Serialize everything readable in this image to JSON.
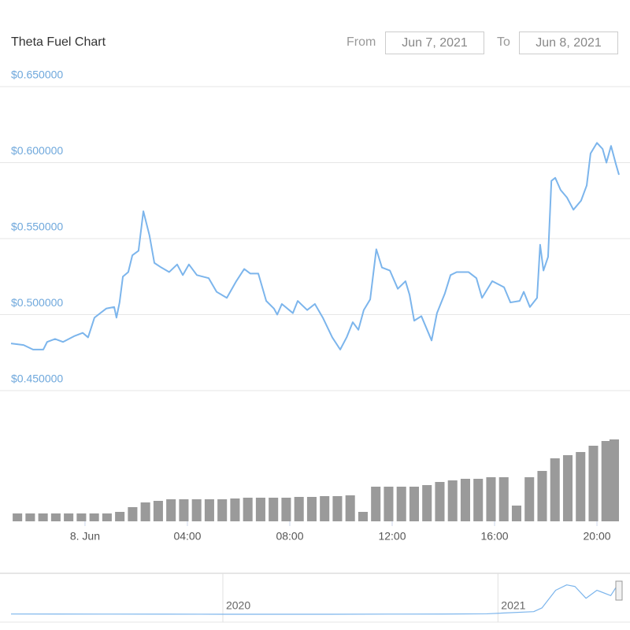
{
  "header": {
    "title": "Theta Fuel Chart",
    "from_label": "From",
    "from_date": "Jun 7, 2021",
    "to_label": "To",
    "to_date": "Jun 8, 2021"
  },
  "chart_data": [
    {
      "type": "line",
      "color": "#7cb5ec",
      "grid": true,
      "xlim": [
        -2.89,
        20.86
      ],
      "ylim": [
        0.45,
        0.65
      ],
      "yticks": [
        {
          "value": 0.45,
          "label": "$0.450000"
        },
        {
          "value": 0.5,
          "label": "$0.500000"
        },
        {
          "value": 0.55,
          "label": "$0.550000"
        },
        {
          "value": 0.6,
          "label": "$0.600000"
        },
        {
          "value": 0.65,
          "label": "$0.650000"
        }
      ],
      "xticks": [
        {
          "value": 0,
          "label": "8. Jun"
        },
        {
          "value": 4,
          "label": "04:00"
        },
        {
          "value": 8,
          "label": "08:00"
        },
        {
          "value": 12,
          "label": "12:00"
        },
        {
          "value": 16,
          "label": "16:00"
        },
        {
          "value": 20,
          "label": "20:00"
        }
      ],
      "x": [
        -2.89,
        -2.4,
        -2.03,
        -1.63,
        -1.48,
        -1.17,
        -0.86,
        -0.4,
        -0.09,
        0.12,
        0.37,
        0.83,
        1.14,
        1.23,
        1.35,
        1.48,
        1.69,
        1.85,
        2.09,
        2.28,
        2.52,
        2.71,
        2.98,
        3.29,
        3.6,
        3.82,
        4.06,
        4.37,
        4.83,
        5.14,
        5.54,
        5.91,
        6.22,
        6.46,
        6.77,
        7.08,
        7.38,
        7.51,
        7.69,
        8.12,
        8.31,
        8.68,
        8.98,
        9.29,
        9.66,
        9.97,
        10.22,
        10.46,
        10.68,
        10.89,
        11.14,
        11.38,
        11.6,
        11.91,
        12.22,
        12.52,
        12.68,
        12.86,
        13.14,
        13.54,
        13.75,
        14.06,
        14.28,
        14.52,
        14.98,
        15.29,
        15.51,
        15.91,
        16.37,
        16.62,
        16.98,
        17.14,
        17.38,
        17.66,
        17.78,
        17.91,
        18.09,
        18.22,
        18.37,
        18.58,
        18.83,
        19.08,
        19.38,
        19.6,
        19.75,
        20,
        20.22,
        20.37,
        20.55,
        20.74,
        20.86
      ],
      "values": [
        0.481,
        0.48,
        0.477,
        0.477,
        0.482,
        0.484,
        0.482,
        0.486,
        0.488,
        0.485,
        0.498,
        0.504,
        0.505,
        0.498,
        0.508,
        0.525,
        0.528,
        0.539,
        0.542,
        0.568,
        0.552,
        0.534,
        0.531,
        0.528,
        0.533,
        0.526,
        0.533,
        0.526,
        0.524,
        0.515,
        0.511,
        0.522,
        0.53,
        0.527,
        0.527,
        0.509,
        0.504,
        0.5,
        0.507,
        0.501,
        0.509,
        0.503,
        0.507,
        0.498,
        0.485,
        0.477,
        0.485,
        0.495,
        0.49,
        0.503,
        0.51,
        0.543,
        0.531,
        0.529,
        0.517,
        0.522,
        0.513,
        0.496,
        0.499,
        0.483,
        0.501,
        0.514,
        0.526,
        0.528,
        0.528,
        0.524,
        0.511,
        0.522,
        0.518,
        0.508,
        0.509,
        0.515,
        0.505,
        0.511,
        0.546,
        0.529,
        0.538,
        0.588,
        0.59,
        0.582,
        0.577,
        0.569,
        0.575,
        0.585,
        0.606,
        0.613,
        0.609,
        0.6,
        0.611,
        0.599,
        0.592
      ]
    },
    {
      "type": "bar",
      "color": "#9a9a9a",
      "xlim": [
        -2.89,
        20.86
      ],
      "x": [
        -2.64,
        -2.14,
        -1.64,
        -1.14,
        -0.64,
        -0.14,
        0.36,
        0.86,
        1.36,
        1.86,
        2.36,
        2.86,
        3.36,
        3.86,
        4.36,
        4.86,
        5.36,
        5.86,
        6.36,
        6.86,
        7.36,
        7.86,
        8.36,
        8.86,
        9.36,
        9.86,
        10.36,
        10.86,
        11.36,
        11.86,
        12.36,
        12.86,
        13.36,
        13.86,
        14.36,
        14.86,
        15.36,
        15.86,
        16.36,
        16.86,
        17.36,
        17.86,
        18.36,
        18.86,
        19.36,
        19.86,
        20.36,
        20.86
      ],
      "values": [
        10,
        10,
        10,
        10,
        10,
        10,
        10,
        10,
        12,
        18,
        24,
        26,
        28,
        28,
        28,
        28,
        28,
        29,
        30,
        30,
        30,
        30,
        31,
        31,
        32,
        32,
        33,
        12,
        44,
        44,
        44,
        44,
        46,
        50,
        52,
        54,
        54,
        56,
        56,
        20,
        56,
        64,
        80,
        84,
        88,
        96,
        102,
        104
      ]
    },
    {
      "type": "line",
      "color": "#7cb5ec",
      "xlim": [
        2019.23,
        2021.44
      ],
      "xticks": [
        2020,
        2021
      ],
      "x": [
        2019.23,
        2019.4,
        2019.6,
        2019.8,
        2020.0,
        2020.2,
        2020.4,
        2020.6,
        2020.8,
        2020.96,
        2021.13,
        2021.16,
        2021.21,
        2021.25,
        2021.28,
        2021.32,
        2021.36,
        2021.41,
        2021.44
      ],
      "values": [
        0.006,
        0.005,
        0.004,
        0.003,
        0.002,
        0.0015,
        0.002,
        0.004,
        0.005,
        0.01,
        0.05,
        0.12,
        0.45,
        0.55,
        0.52,
        0.3,
        0.45,
        0.35,
        0.59
      ]
    }
  ]
}
